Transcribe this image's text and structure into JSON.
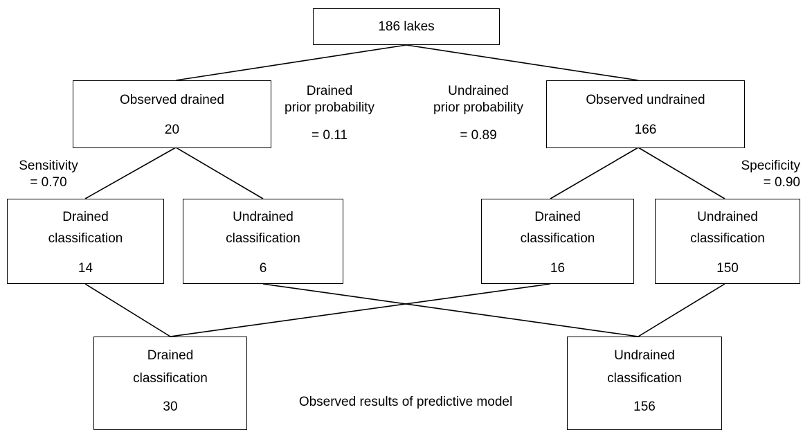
{
  "root": {
    "title": "186 lakes"
  },
  "observed": {
    "drained": {
      "title": "Observed drained",
      "count": "20"
    },
    "undrained": {
      "title": "Observed undrained",
      "count": "166"
    }
  },
  "priors": {
    "drained": {
      "line1": "Drained",
      "line2": "prior probability",
      "value": "= 0.11"
    },
    "undrained": {
      "line1": "Undrained",
      "line2": "prior probability",
      "value": "= 0.89"
    }
  },
  "rates": {
    "sensitivity": {
      "label": "Sensitivity",
      "value": "= 0.70"
    },
    "specificity": {
      "label": "Specificity",
      "value": "= 0.90"
    }
  },
  "classifications": [
    {
      "line1": "Drained",
      "line2": "classification",
      "count": "14"
    },
    {
      "line1": "Undrained",
      "line2": "classification",
      "count": "6"
    },
    {
      "line1": "Drained",
      "line2": "classification",
      "count": "16"
    },
    {
      "line1": "Undrained",
      "line2": "classification",
      "count": "150"
    }
  ],
  "results": {
    "drained": {
      "line1": "Drained",
      "line2": "classification",
      "count": "30"
    },
    "undrained": {
      "line1": "Undrained",
      "line2": "classification",
      "count": "156"
    },
    "caption": "Observed results of predictive model"
  }
}
